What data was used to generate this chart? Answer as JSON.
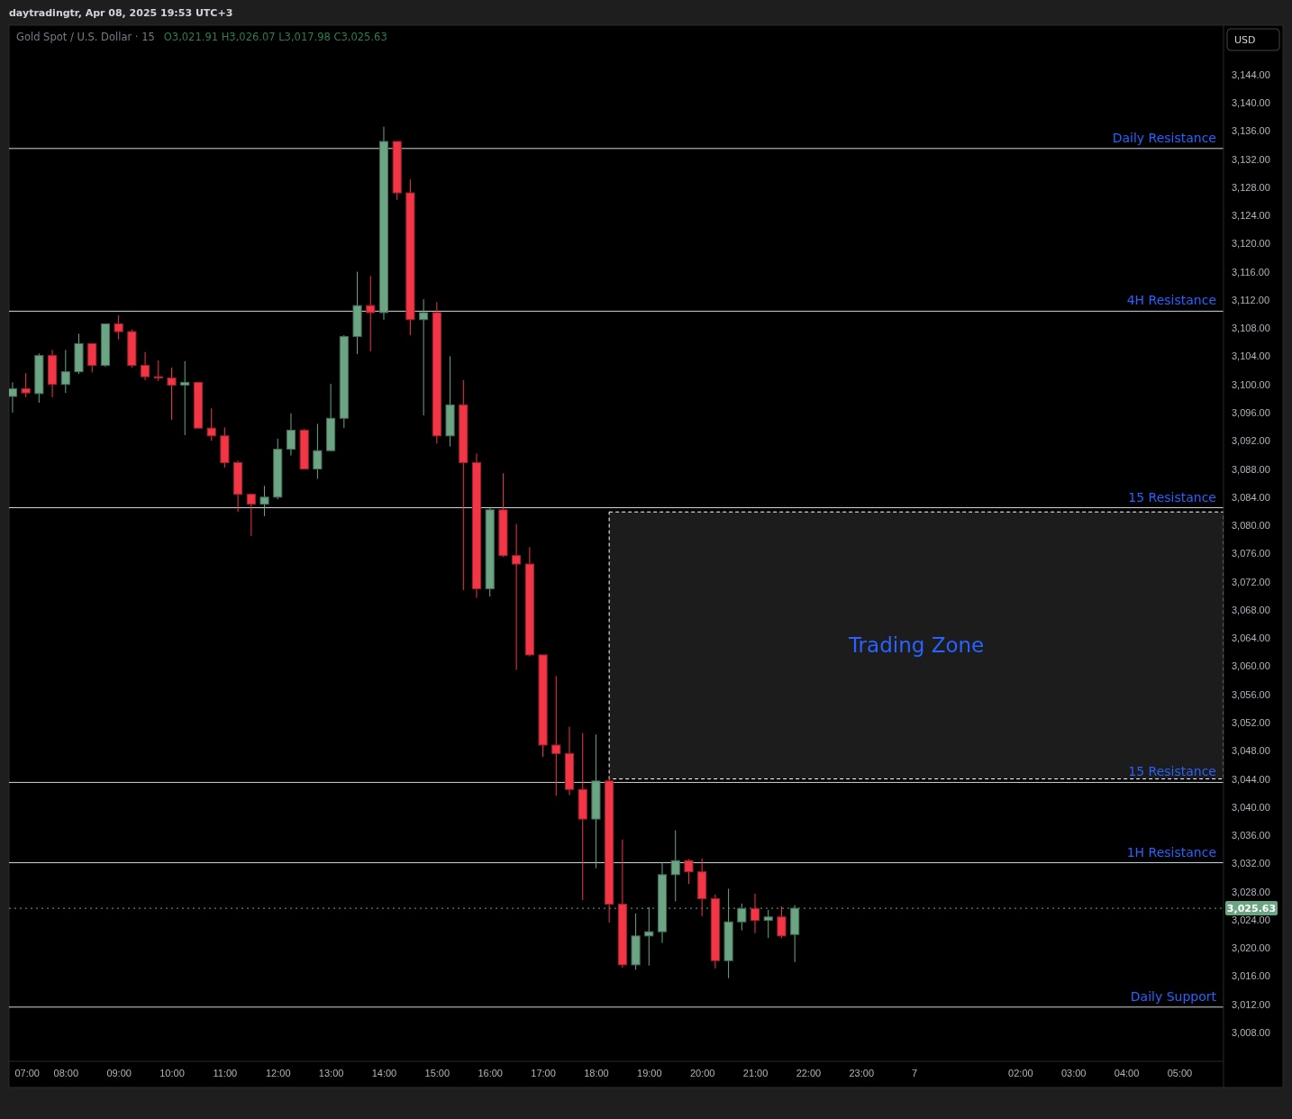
{
  "chart_data": {
    "type": "candlestick",
    "title": "Gold Spot / U.S. Dollar · 15",
    "subtitle": "O3,021.91 H3,026.07 L3,017.98 C3,025.63",
    "ylabel": "USD",
    "annotations": [
      "daytradingtr, Apr 08, 2025 19:53 UTC+3"
    ],
    "x": [
      "2025-04-06T07:00",
      "2025-04-06T07:15",
      "2025-04-06T07:30",
      "2025-04-06T07:45",
      "2025-04-06T08:00",
      "2025-04-06T08:15",
      "2025-04-06T08:30",
      "2025-04-06T08:45",
      "2025-04-06T09:00",
      "2025-04-06T09:15",
      "2025-04-06T09:30",
      "2025-04-06T09:45",
      "2025-04-06T10:00",
      "2025-04-06T10:15",
      "2025-04-06T10:30",
      "2025-04-06T10:45",
      "2025-04-06T11:00",
      "2025-04-06T11:15",
      "2025-04-06T11:30",
      "2025-04-06T11:45",
      "2025-04-06T12:00",
      "2025-04-06T12:15",
      "2025-04-06T12:30",
      "2025-04-06T12:45",
      "2025-04-06T13:00",
      "2025-04-06T13:15",
      "2025-04-06T13:30",
      "2025-04-06T13:45",
      "2025-04-06T14:00",
      "2025-04-06T14:15",
      "2025-04-06T14:30",
      "2025-04-06T14:45",
      "2025-04-06T15:00",
      "2025-04-06T15:15",
      "2025-04-06T15:30",
      "2025-04-06T15:45",
      "2025-04-06T16:00",
      "2025-04-06T16:15",
      "2025-04-06T16:30",
      "2025-04-06T16:45",
      "2025-04-06T17:00",
      "2025-04-06T17:15",
      "2025-04-06T17:30",
      "2025-04-06T17:45",
      "2025-04-06T18:00",
      "2025-04-06T18:15",
      "2025-04-06T18:30",
      "2025-04-06T18:45",
      "2025-04-06T19:00",
      "2025-04-06T19:15",
      "2025-04-06T19:30",
      "2025-04-06T19:45",
      "2025-04-06T20:00",
      "2025-04-06T20:15",
      "2025-04-06T20:30",
      "2025-04-06T20:45",
      "2025-04-06T21:00",
      "2025-04-06T21:15",
      "2025-04-06T21:30",
      "2025-04-06T21:45"
    ],
    "ohlc": [
      [
        3098.3,
        3100.3,
        3096.0,
        3099.4
      ],
      [
        3099.4,
        3101.6,
        3098.2,
        3098.8
      ],
      [
        3098.7,
        3104.4,
        3097.4,
        3104.1
      ],
      [
        3104.1,
        3104.9,
        3098.2,
        3100.0
      ],
      [
        3100.0,
        3104.9,
        3098.8,
        3101.8
      ],
      [
        3101.8,
        3107.2,
        3101.5,
        3105.8
      ],
      [
        3105.8,
        3105.8,
        3101.7,
        3102.7
      ],
      [
        3102.7,
        3108.6,
        3102.5,
        3108.6
      ],
      [
        3108.6,
        3109.8,
        3106.4,
        3107.5
      ],
      [
        3107.5,
        3107.8,
        3102.4,
        3102.7
      ],
      [
        3102.7,
        3104.6,
        3100.6,
        3101.1
      ],
      [
        3101.1,
        3103.4,
        3100.5,
        3100.9
      ],
      [
        3100.9,
        3102.4,
        3095.0,
        3099.9
      ],
      [
        3099.9,
        3103.3,
        3092.8,
        3100.3
      ],
      [
        3100.3,
        3100.3,
        3093.8,
        3093.8
      ],
      [
        3093.8,
        3096.6,
        3092.0,
        3092.7
      ],
      [
        3092.7,
        3093.9,
        3088.2,
        3088.9
      ],
      [
        3088.9,
        3089.2,
        3081.9,
        3084.4
      ],
      [
        3084.4,
        3084.5,
        3078.5,
        3083.0
      ],
      [
        3083.0,
        3085.6,
        3081.3,
        3084.0
      ],
      [
        3084.0,
        3092.3,
        3083.7,
        3090.8
      ],
      [
        3090.8,
        3095.9,
        3089.9,
        3093.5
      ],
      [
        3093.5,
        3093.7,
        3088.0,
        3088.0
      ],
      [
        3088.0,
        3094.4,
        3086.6,
        3090.6
      ],
      [
        3090.6,
        3100.1,
        3090.5,
        3095.2
      ],
      [
        3095.2,
        3107.0,
        3093.8,
        3106.8
      ],
      [
        3106.8,
        3116.0,
        3104.3,
        3111.2
      ],
      [
        3111.2,
        3115.4,
        3104.7,
        3110.2
      ],
      [
        3110.2,
        3136.6,
        3109.2,
        3134.5
      ],
      [
        3134.5,
        3134.5,
        3126.2,
        3127.2
      ],
      [
        3127.2,
        3129.1,
        3107.0,
        3109.2
      ],
      [
        3109.2,
        3112.1,
        3095.6,
        3110.2
      ],
      [
        3110.2,
        3111.7,
        3091.6,
        3092.7
      ],
      [
        3092.7,
        3104.0,
        3091.2,
        3097.1
      ],
      [
        3097.1,
        3100.6,
        3070.8,
        3088.9
      ],
      [
        3088.9,
        3090.2,
        3069.7,
        3071.0
      ],
      [
        3071.0,
        3082.5,
        3069.9,
        3082.2
      ],
      [
        3082.2,
        3087.4,
        3075.5,
        3075.7
      ],
      [
        3075.7,
        3080.2,
        3059.5,
        3074.5
      ],
      [
        3074.5,
        3076.9,
        3061.4,
        3061.6
      ],
      [
        3061.6,
        3061.6,
        3047.1,
        3048.8
      ],
      [
        3048.8,
        3058.6,
        3041.6,
        3047.6
      ],
      [
        3047.6,
        3051.4,
        3041.7,
        3042.5
      ],
      [
        3042.5,
        3050.5,
        3026.8,
        3038.3
      ],
      [
        3038.3,
        3050.3,
        3031.3,
        3043.7
      ],
      [
        3043.7,
        3044.4,
        3023.6,
        3026.2
      ],
      [
        3026.2,
        3035.4,
        3017.2,
        3017.6
      ],
      [
        3017.6,
        3024.9,
        3016.9,
        3021.7
      ],
      [
        3021.7,
        3025.8,
        3017.5,
        3022.3
      ],
      [
        3022.3,
        3032.2,
        3020.7,
        3030.4
      ],
      [
        3030.4,
        3036.7,
        3026.6,
        3032.4
      ],
      [
        3032.4,
        3032.6,
        3029.1,
        3030.8
      ],
      [
        3030.8,
        3032.7,
        3024.5,
        3027.0
      ],
      [
        3027.0,
        3027.6,
        3017.1,
        3018.2
      ],
      [
        3018.2,
        3028.4,
        3015.7,
        3023.7
      ],
      [
        3023.7,
        3026.3,
        3022.5,
        3025.6
      ],
      [
        3025.6,
        3027.7,
        3022.1,
        3023.9
      ],
      [
        3023.9,
        3025.4,
        3021.4,
        3024.4
      ],
      [
        3024.4,
        3025.9,
        3021.4,
        3021.7
      ],
      [
        3021.91,
        3026.07,
        3017.98,
        3025.63
      ]
    ],
    "colors": [
      "#6ca584",
      "#f23645",
      "#6ca584",
      "#f23645",
      "#6ca584",
      "#6ca584",
      "#f23645",
      "#6ca584",
      "#f23645",
      "#f23645",
      "#f23645",
      "#f23645",
      "#f23645",
      "#6ca584",
      "#f23645",
      "#f23645",
      "#f23645",
      "#f23645",
      "#f23645",
      "#6ca584",
      "#6ca584",
      "#6ca584",
      "#f23645",
      "#6ca584",
      "#6ca584",
      "#6ca584",
      "#6ca584",
      "#f23645",
      "#6ca584",
      "#f23645",
      "#f23645",
      "#6ca584",
      "#f23645",
      "#6ca584",
      "#f23645",
      "#f23645",
      "#6ca584",
      "#f23645",
      "#f23645",
      "#f23645",
      "#f23645",
      "#f23645",
      "#f23645",
      "#f23645",
      "#6ca584",
      "#f23645",
      "#f23645",
      "#6ca584",
      "#6ca584",
      "#6ca584",
      "#6ca584",
      "#f23645",
      "#f23645",
      "#f23645",
      "#6ca584",
      "#6ca584",
      "#f23645",
      "#6ca584",
      "#f23645",
      "#6ca584"
    ],
    "xlim": [
      "2025-04-06T06:56",
      "2025-04-07T05:50"
    ],
    "xticks": [
      {
        "value": "2025-04-06T07:00",
        "label": "07:00"
      },
      {
        "value": "2025-04-06T08:00",
        "label": "08:00"
      },
      {
        "value": "2025-04-06T09:00",
        "label": "09:00"
      },
      {
        "value": "2025-04-06T10:00",
        "label": "10:00"
      },
      {
        "value": "2025-04-06T11:00",
        "label": "11:00"
      },
      {
        "value": "2025-04-06T12:00",
        "label": "12:00"
      },
      {
        "value": "2025-04-06T13:00",
        "label": "13:00"
      },
      {
        "value": "2025-04-06T14:00",
        "label": "14:00"
      },
      {
        "value": "2025-04-06T15:00",
        "label": "15:00"
      },
      {
        "value": "2025-04-06T16:00",
        "label": "16:00"
      },
      {
        "value": "2025-04-06T17:00",
        "label": "17:00"
      },
      {
        "value": "2025-04-06T18:00",
        "label": "18:00"
      },
      {
        "value": "2025-04-06T19:00",
        "label": "19:00"
      },
      {
        "value": "2025-04-06T20:00",
        "label": "20:00"
      },
      {
        "value": "2025-04-06T21:00",
        "label": "21:00"
      },
      {
        "value": "2025-04-06T22:00",
        "label": "22:00"
      },
      {
        "value": "2025-04-06T23:00",
        "label": "23:00"
      },
      {
        "value": "2025-04-07T00:00",
        "label": "7"
      },
      {
        "value": "2025-04-07T02:00",
        "label": "02:00"
      },
      {
        "value": "2025-04-07T03:00",
        "label": "03:00"
      },
      {
        "value": "2025-04-07T04:00",
        "label": "04:00"
      },
      {
        "value": "2025-04-07T05:00",
        "label": "05:00"
      }
    ],
    "ylim": [
      3003.9,
      3151
    ],
    "yticks": [
      {
        "value": 3008,
        "label": "3,008.00"
      },
      {
        "value": 3012,
        "label": "3,012.00"
      },
      {
        "value": 3016,
        "label": "3,016.00"
      },
      {
        "value": 3020,
        "label": "3,020.00"
      },
      {
        "value": 3024,
        "label": "3,024.00"
      },
      {
        "value": 3028,
        "label": "3,028.00"
      },
      {
        "value": 3032,
        "label": "3,032.00"
      },
      {
        "value": 3036,
        "label": "3,036.00"
      },
      {
        "value": 3040,
        "label": "3,040.00"
      },
      {
        "value": 3044,
        "label": "3,044.00"
      },
      {
        "value": 3048,
        "label": "3,048.00"
      },
      {
        "value": 3052,
        "label": "3,052.00"
      },
      {
        "value": 3056,
        "label": "3,056.00"
      },
      {
        "value": 3060,
        "label": "3,060.00"
      },
      {
        "value": 3064,
        "label": "3,064.00"
      },
      {
        "value": 3068,
        "label": "3,068.00"
      },
      {
        "value": 3072,
        "label": "3,072.00"
      },
      {
        "value": 3076,
        "label": "3,076.00"
      },
      {
        "value": 3080,
        "label": "3,080.00"
      },
      {
        "value": 3084,
        "label": "3,084.00"
      },
      {
        "value": 3088,
        "label": "3,088.00"
      },
      {
        "value": 3092,
        "label": "3,092.00"
      },
      {
        "value": 3096,
        "label": "3,096.00"
      },
      {
        "value": 3100,
        "label": "3,100.00"
      },
      {
        "value": 3104,
        "label": "3,104.00"
      },
      {
        "value": 3108,
        "label": "3,108.00"
      },
      {
        "value": 3112,
        "label": "3,112.00"
      },
      {
        "value": 3116,
        "label": "3,116.00"
      },
      {
        "value": 3120,
        "label": "3,120.00"
      },
      {
        "value": 3124,
        "label": "3,124.00"
      },
      {
        "value": 3128,
        "label": "3,128.00"
      },
      {
        "value": 3132,
        "label": "3,132.00"
      },
      {
        "value": 3136,
        "label": "3,136.00"
      },
      {
        "value": 3140,
        "label": "3,140.00"
      },
      {
        "value": 3144,
        "label": "3,144.00"
      }
    ],
    "ref_lines": [
      {
        "axis": "y",
        "value": 3133.5,
        "label": "Daily Resistance",
        "color": "#d1d4dc"
      },
      {
        "axis": "y",
        "value": 3110.4,
        "label": "4H Resistance",
        "color": "#d1d4dc"
      },
      {
        "axis": "y",
        "value": 3082.5,
        "label": "15 Resistance",
        "color": "#d1d4dc"
      },
      {
        "axis": "y",
        "value": 3043.5,
        "label": "15 Resistance",
        "color": "#d1d4dc"
      },
      {
        "axis": "y",
        "value": 3032.1,
        "label": "1H Resistance",
        "color": "#d1d4dc"
      },
      {
        "axis": "y",
        "value": 3011.6,
        "label": "Daily Support",
        "color": "#d1d4dc"
      },
      {
        "axis": "y",
        "value": 3025.63,
        "label": "3,025.63",
        "color": "#6ca584",
        "line_style": "dotted"
      }
    ],
    "bands": [
      {
        "axis": "y",
        "from": 3044.0,
        "to": 3081.9,
        "label": "Trading Zone",
        "color": "#1c1c1c"
      }
    ]
  }
}
